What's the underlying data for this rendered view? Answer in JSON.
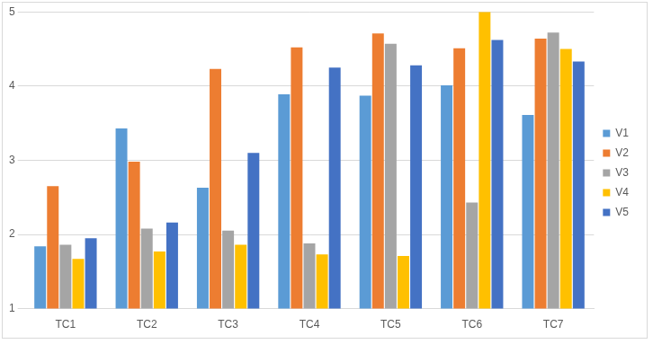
{
  "chart_data": {
    "type": "bar",
    "categories": [
      "TC1",
      "TC2",
      "TC3",
      "TC4",
      "TC5",
      "TC6",
      "TC7"
    ],
    "series": [
      {
        "name": "V1",
        "color": "#5B9BD5",
        "values": [
          1.84,
          3.43,
          2.63,
          3.89,
          3.87,
          4.01,
          3.61
        ]
      },
      {
        "name": "V2",
        "color": "#ED7D31",
        "values": [
          2.65,
          2.98,
          4.23,
          4.52,
          4.71,
          4.51,
          4.64
        ]
      },
      {
        "name": "V3",
        "color": "#A5A5A5",
        "values": [
          1.86,
          2.08,
          2.05,
          1.88,
          4.57,
          2.43,
          4.72
        ]
      },
      {
        "name": "V4",
        "color": "#FFC000",
        "values": [
          1.67,
          1.77,
          1.86,
          1.73,
          1.71,
          5.0,
          4.5
        ]
      },
      {
        "name": "V5",
        "color": "#4472C4",
        "values": [
          1.95,
          2.16,
          3.1,
          4.25,
          4.28,
          4.62,
          4.33
        ]
      }
    ],
    "ylim": [
      1,
      5
    ],
    "yticks": [
      1,
      2,
      3,
      4,
      5
    ],
    "grid": true,
    "legend": "right"
  }
}
